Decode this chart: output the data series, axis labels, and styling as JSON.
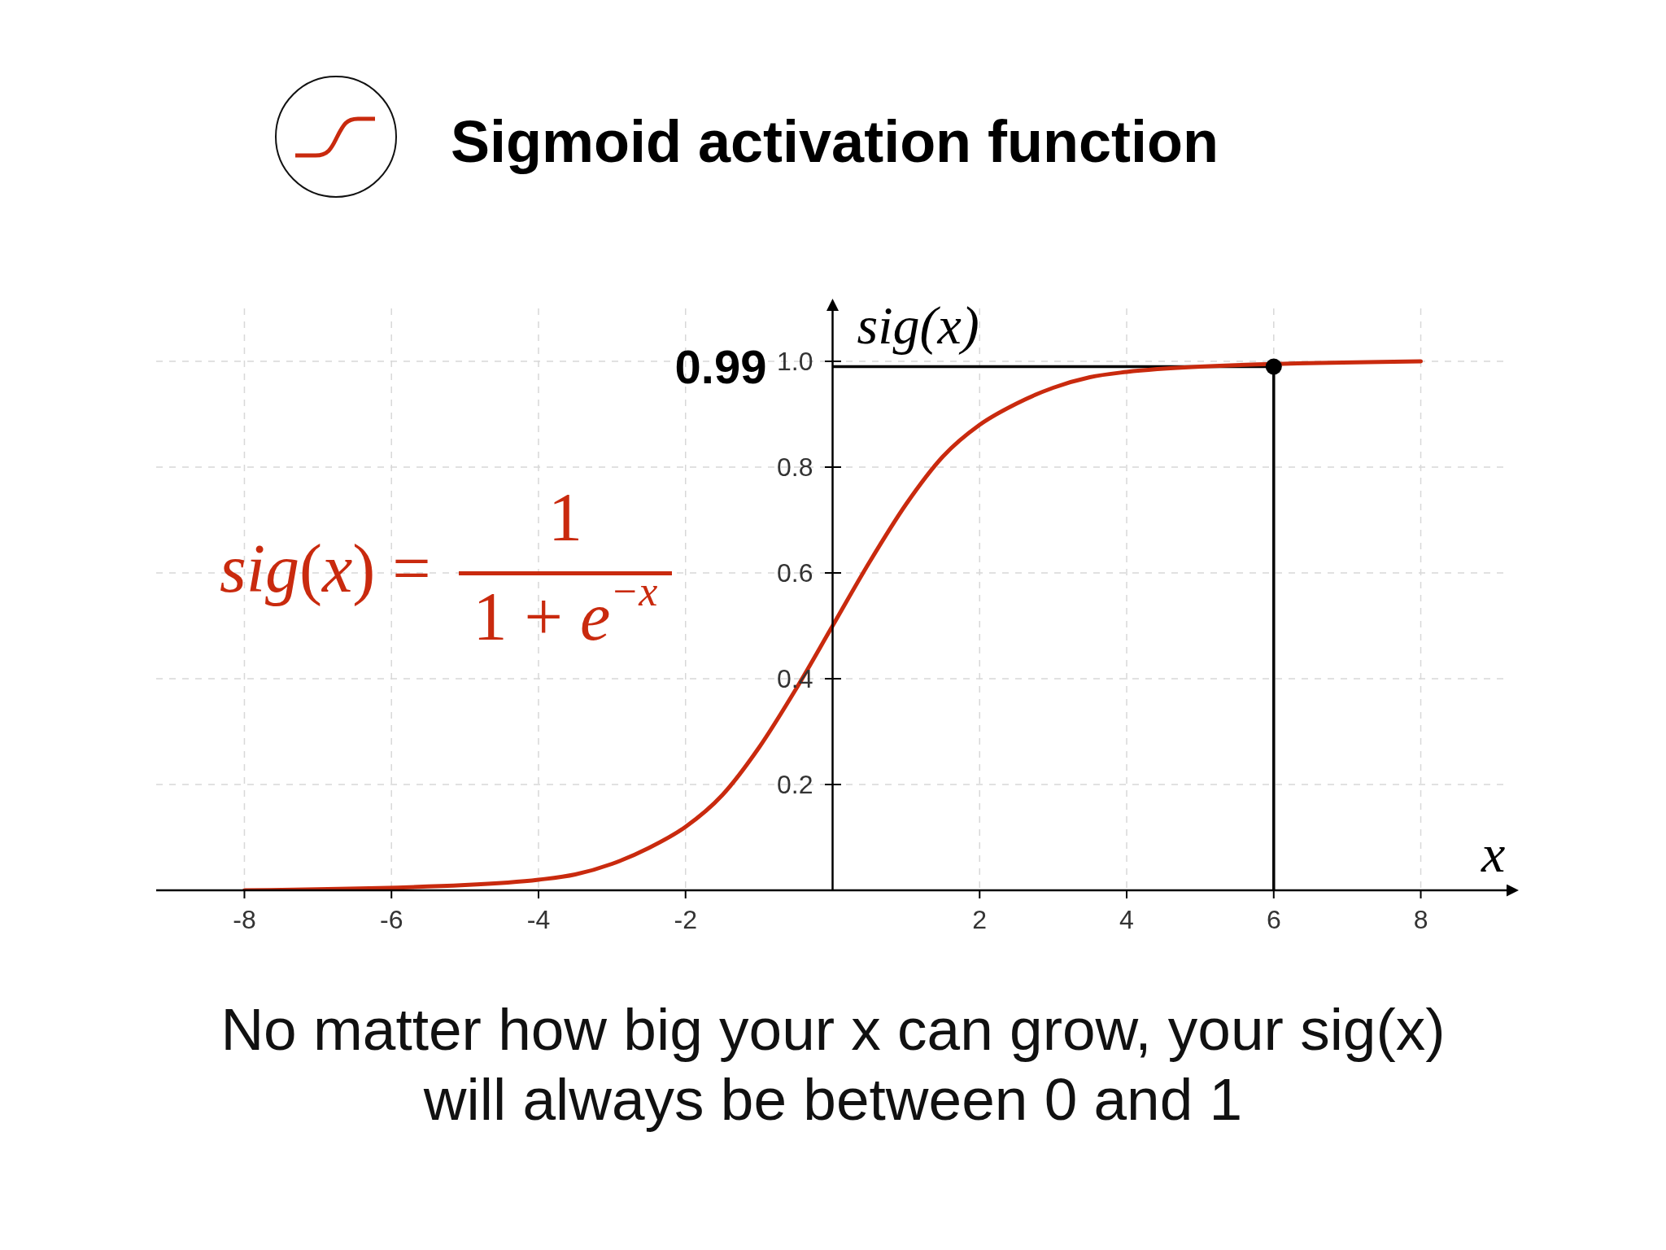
{
  "chart_data": {
    "type": "line",
    "title": "Sigmoid activation function",
    "xlabel": "x",
    "ylabel": "sig(x)",
    "annotations": [
      "sig(x) =",
      "1",
      "1 + e$^{−x}$",
      "No matter how big your x can grow, your sig(x) will always be between 0 and 1"
    ],
    "x": [
      -8,
      -5,
      -4,
      -3.5,
      -3,
      -2.5,
      -2,
      -1.5,
      -1,
      -0.5,
      0,
      0.5,
      1,
      1.5,
      2,
      2.5,
      3,
      3.5,
      4,
      5,
      8
    ],
    "series": [
      {
        "color": "#c92a0e",
        "values": [
          0,
          0.01,
          0.02,
          0.03,
          0.05,
          0.08,
          0.12,
          0.18,
          0.27,
          0.38,
          0.5,
          0.62,
          0.73,
          0.82,
          0.88,
          0.92,
          0.95,
          0.97,
          0.98,
          0.99,
          1
        ]
      },
      {
        "type": "scatter",
        "color": "#000000",
        "x": [
          6
        ],
        "values": [
          0.99
        ],
        "marker": "circle"
      }
    ],
    "xlim": [
      -9.2,
      9.2
    ],
    "ylim": [
      0,
      1.1
    ],
    "xticks": [
      -8,
      -6,
      -4,
      -2,
      2,
      4,
      6,
      8
    ],
    "yticks": [
      0.2,
      0.4,
      0.6,
      0.8,
      {
        "value": 1,
        "label": "1.0"
      }
    ],
    "grid": true,
    "ref_lines": [
      {
        "axis": "y",
        "value": 0.99,
        "label": "0.99",
        "color": "#000000"
      },
      {
        "axis": "x",
        "value": 6,
        "color": "#000000"
      }
    ]
  }
}
